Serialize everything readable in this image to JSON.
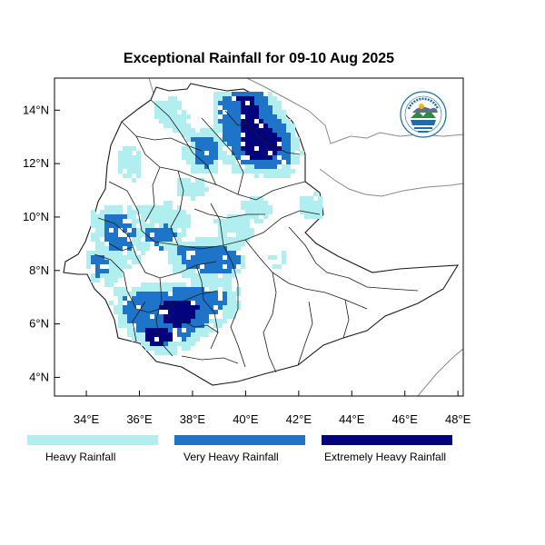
{
  "title": "Exceptional Rainfall for 09-10 Aug 2025",
  "map": {
    "lon_range": [
      32.8,
      48.2
    ],
    "lat_range": [
      3.3,
      15.2
    ],
    "x_ticks": [
      {
        "value": 34,
        "label": "34°E"
      },
      {
        "value": 36,
        "label": "36°E"
      },
      {
        "value": 38,
        "label": "38°E"
      },
      {
        "value": 40,
        "label": "40°E"
      },
      {
        "value": 42,
        "label": "42°E"
      },
      {
        "value": 44,
        "label": "44°E"
      },
      {
        "value": 46,
        "label": "46°E"
      },
      {
        "value": 48,
        "label": "48°E"
      }
    ],
    "y_ticks": [
      {
        "value": 4,
        "label": "4°N"
      },
      {
        "value": 6,
        "label": "6°N"
      },
      {
        "value": 8,
        "label": "8°N"
      },
      {
        "value": 10,
        "label": "10°N"
      },
      {
        "value": 12,
        "label": "12°N"
      },
      {
        "value": 14,
        "label": "14°N"
      }
    ]
  },
  "legend": [
    {
      "label": "Heavy Rainfall",
      "color": "#b0eef0"
    },
    {
      "label": "Very Heavy Rainfall",
      "color": "#1e74c8"
    },
    {
      "label": "Extremely Heavy Rainfall",
      "color": "#03037e"
    }
  ],
  "colors": {
    "heavy": "#b0eef0",
    "very_heavy": "#1e74c8",
    "extreme": "#03037e",
    "border": "#1a1a1a",
    "neighbor_border": "#8a8a8a"
  },
  "logo": {
    "icon": "meteorology-agency-logo-icon"
  }
}
